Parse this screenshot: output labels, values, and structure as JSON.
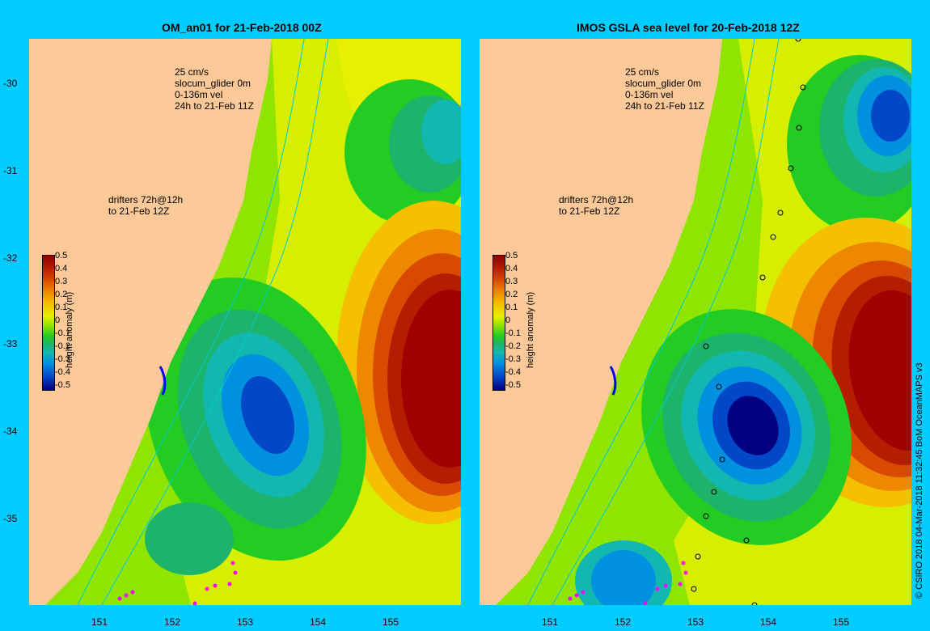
{
  "left_panel": {
    "title": "OM_an01 for 21-Feb-2018 00Z",
    "legend_lines": [
      "25 cm/s",
      "slocum_glider 0m",
      "0-136m vel",
      "24h to 21-Feb 11Z"
    ],
    "drifter_lines": [
      "drifters 72h@12h",
      "to 21-Feb 12Z"
    ]
  },
  "right_panel": {
    "title": "IMOS GSLA sea level  for 20-Feb-2018 12Z",
    "legend_lines": [
      "25 cm/s",
      "slocum_glider 0m",
      "0-136m vel",
      "24h to 21-Feb 11Z"
    ],
    "drifter_lines": [
      "drifters 72h@12h",
      "to 21-Feb 12Z"
    ]
  },
  "axes": {
    "lat_ticks": [
      "-30",
      "-31",
      "-32",
      "-33",
      "-34",
      "-35"
    ],
    "lon_ticks": [
      "151",
      "152",
      "153",
      "154",
      "155"
    ]
  },
  "colorbar": {
    "title": "height anomaly (m)",
    "ticks": [
      "0.5",
      "0.4",
      "0.3",
      "0.2",
      "0.1",
      "0",
      "-0.1",
      "-0.2",
      "-0.3",
      "-0.4",
      "-0.5"
    ]
  },
  "credit": "© CSIRO 2018   04-Mar-2018 11:32:45 BoM OceanMAPS v3",
  "colors": {
    "background": "#00ccff",
    "land": "#fdc998",
    "high": "#a00000",
    "low": "#000080",
    "drifter": "#ff00ff",
    "glider": "#0000ff"
  }
}
